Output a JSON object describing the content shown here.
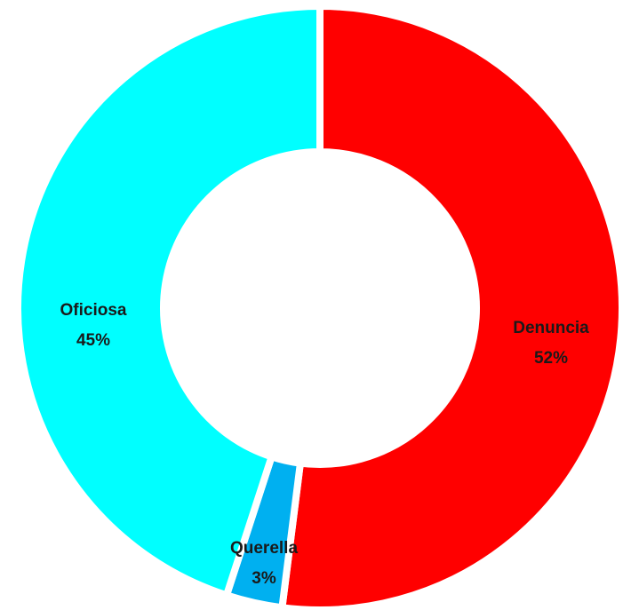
{
  "chart_data": {
    "type": "donut",
    "categories": [
      "Denuncia",
      "Querella",
      "Oficiosa"
    ],
    "values": [
      52,
      3,
      45
    ],
    "value_labels": [
      "52%",
      "3%",
      "45%"
    ],
    "colors": [
      "#ff0000",
      "#00b0f0",
      "#00ffff"
    ]
  }
}
